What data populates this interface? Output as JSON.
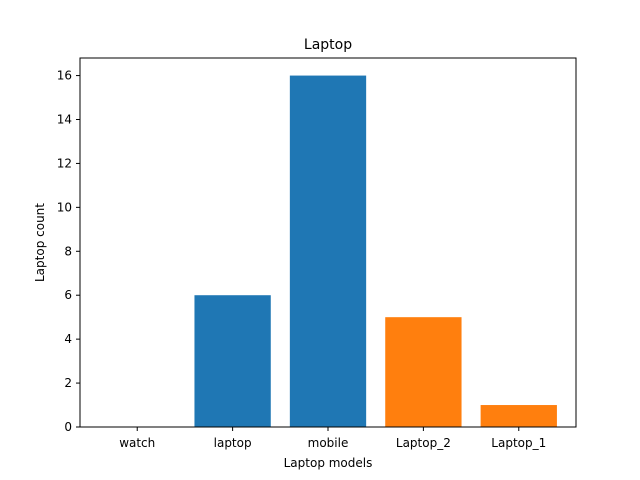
{
  "chart_data": {
    "type": "bar",
    "title": "Laptop",
    "xlabel": "Laptop models",
    "ylabel": "Laptop count",
    "categories": [
      "watch",
      "laptop",
      "mobile",
      "Laptop_2",
      "Laptop_1"
    ],
    "values": [
      0,
      6,
      16,
      5,
      1
    ],
    "bar_colors": [
      "#1f77b4",
      "#1f77b4",
      "#1f77b4",
      "#ff7f0e",
      "#ff7f0e"
    ],
    "ylim": [
      0,
      16.8
    ],
    "yticks": [
      0,
      2,
      4,
      6,
      8,
      10,
      12,
      14,
      16
    ],
    "grid": false,
    "legend": "none"
  }
}
